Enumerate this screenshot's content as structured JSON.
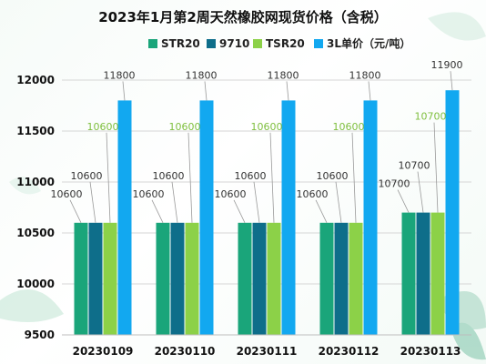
{
  "chart_data": {
    "type": "bar",
    "title": "2023年1月第2周天然橡胶网现货价格（含税）",
    "categories": [
      "20230109",
      "20230110",
      "20230111",
      "20230112",
      "20230113"
    ],
    "series": [
      {
        "name": "STR20",
        "values": [
          10600,
          10600,
          10600,
          10600,
          10700
        ],
        "color": "#1aa57a"
      },
      {
        "name": "9710",
        "values": [
          10600,
          10600,
          10600,
          10600,
          10700
        ],
        "color": "#0e6e8a"
      },
      {
        "name": "TSR20",
        "values": [
          10600,
          10600,
          10600,
          10600,
          10700
        ],
        "color": "#8cd148"
      },
      {
        "name": "3L单价（元/吨）",
        "values": [
          11800,
          11800,
          11800,
          11800,
          11900
        ],
        "color": "#12a8f0"
      }
    ],
    "label_colors": [
      "#333333",
      "#333333",
      "#7fbf3f",
      "#333333"
    ],
    "ylim": [
      9500,
      12000
    ],
    "yticks": [
      9500,
      10000,
      10500,
      11000,
      11500,
      12000
    ],
    "legend_position": "top",
    "grid": true
  }
}
